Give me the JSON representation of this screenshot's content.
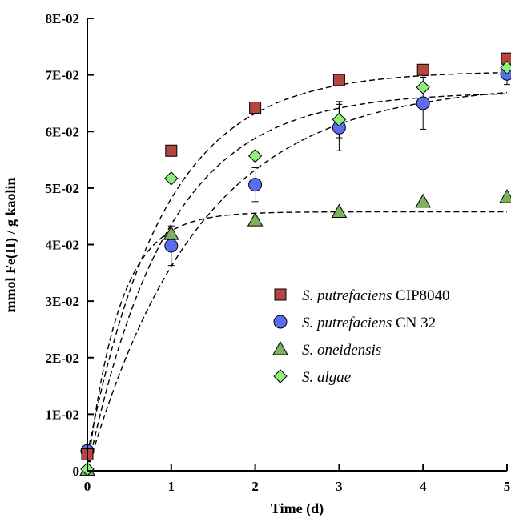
{
  "chart_data": {
    "type": "scatter",
    "xlabel": "Time (d)",
    "ylabel": "mmol Fe(II) / g kaolin",
    "xlim": [
      0,
      5
    ],
    "ylim": [
      0,
      0.08
    ],
    "x_ticks": [
      "0",
      "1",
      "2",
      "3",
      "4",
      "5"
    ],
    "y_ticks": [
      "0",
      "1E-02",
      "2E-02",
      "3E-02",
      "4E-02",
      "5E-02",
      "6E-02",
      "7E-02",
      "8E-02"
    ],
    "grid": false,
    "legend_position": "center-right",
    "series": [
      {
        "name_italic": "S. putrefaciens",
        "name_suffix": " CIP8040",
        "marker": "square",
        "color": "#b5463f",
        "x": [
          0,
          1,
          2,
          3,
          4,
          5
        ],
        "y": [
          0.0029,
          0.0566,
          0.0642,
          0.0691,
          0.0709,
          0.0729
        ],
        "err": [
          0,
          0,
          0,
          0,
          0.0008,
          0
        ],
        "fit": {
          "A": 0.0707,
          "k": 1.1,
          "offset": 0.0029
        }
      },
      {
        "name_italic": "S. putrefaciens",
        "name_suffix": " CN 32",
        "marker": "circle",
        "color": "#5a6df0",
        "x": [
          0,
          1,
          2,
          3,
          4,
          5
        ],
        "y": [
          0.0035,
          0.0398,
          0.0506,
          0.0607,
          0.065,
          0.0702
        ],
        "err": [
          0,
          0.0035,
          0.003,
          0.0041,
          0.0046,
          0.0019
        ],
        "fit": {
          "A": 0.0685,
          "k": 0.75,
          "offset": 0.0
        }
      },
      {
        "name_italic": "S. oneidensis",
        "name_suffix": "",
        "marker": "triangle",
        "color": "#7bb25c",
        "x": [
          0,
          1,
          2,
          3,
          4,
          5
        ],
        "y": [
          0.0002,
          0.0419,
          0.0443,
          0.0458,
          0.0476,
          0.0484
        ],
        "err": [
          0,
          0,
          0,
          0,
          0,
          0
        ],
        "fit": {
          "A": 0.0458,
          "k": 2.6,
          "offset": 0.0
        }
      },
      {
        "name_italic": "S. algae",
        "name_suffix": "",
        "marker": "diamond",
        "color": "#8ef07a",
        "x": [
          0,
          1,
          2,
          3,
          4,
          5
        ],
        "y": [
          0.0003,
          0.0517,
          0.0557,
          0.0621,
          0.0678,
          0.0713
        ],
        "err": [
          0,
          0,
          0,
          0.0032,
          0.0006,
          0
        ],
        "fit": {
          "A": 0.067,
          "k": 1.05,
          "offset": 0.0
        }
      }
    ]
  }
}
